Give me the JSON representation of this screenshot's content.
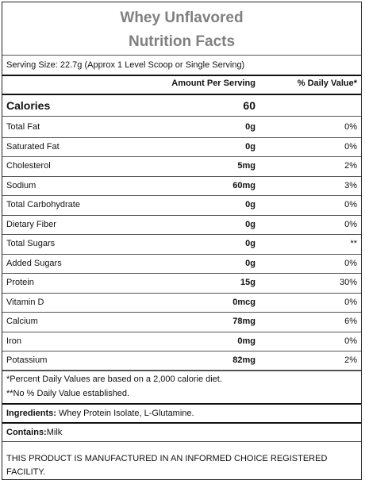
{
  "label": {
    "title_line1": "Whey Unflavored",
    "title_line2": "Nutrition Facts",
    "serving_size": "Serving Size: 22.7g (Approx 1 Level Scoop or Single Serving)",
    "header_amount": "Amount Per Serving",
    "header_daily_value": "% Daily Value*",
    "calories_label": "Calories",
    "calories_value": "60",
    "nutrients": [
      {
        "name": "Total Fat",
        "amount": "0g",
        "dv": "0%"
      },
      {
        "name": "Saturated Fat",
        "amount": "0g",
        "dv": "0%"
      },
      {
        "name": "Cholesterol",
        "amount": "5mg",
        "dv": "2%"
      },
      {
        "name": "Sodium",
        "amount": "60mg",
        "dv": "3%"
      },
      {
        "name": "Total Carbohydrate",
        "amount": "0g",
        "dv": "0%"
      },
      {
        "name": "Dietary Fiber",
        "amount": "0g",
        "dv": "0%"
      },
      {
        "name": "Total Sugars",
        "amount": "0g",
        "dv": "**"
      },
      {
        "name": "Added Sugars",
        "amount": "0g",
        "dv": "0%"
      },
      {
        "name": "Protein",
        "amount": "15g",
        "dv": "30%"
      },
      {
        "name": "Vitamin D",
        "amount": "0mcg",
        "dv": "0%"
      },
      {
        "name": "Calcium",
        "amount": "78mg",
        "dv": "6%"
      },
      {
        "name": "Iron",
        "amount": "0mg",
        "dv": "0%"
      },
      {
        "name": "Potassium",
        "amount": "82mg",
        "dv": "2%"
      }
    ],
    "footnote_1": "*Percent Daily Values are based on a 2,000 calorie diet.",
    "footnote_2": "**No % Daily Value established.",
    "ingredients_label": "Ingredients:",
    "ingredients_text": " Whey Protein Isolate, L-Glutamine.",
    "contains_label": "Contains:",
    "contains_text": "Milk",
    "certification": "THIS PRODUCT IS MANUFACTURED IN AN INFORMED CHOICE REGISTERED FACILITY."
  }
}
